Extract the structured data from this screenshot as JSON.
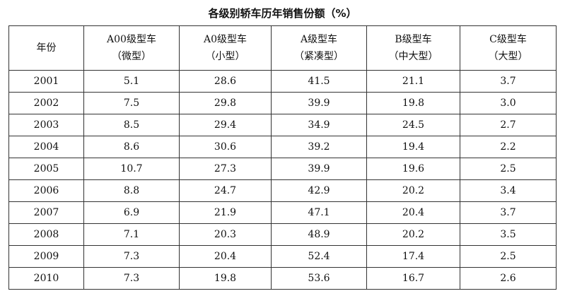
{
  "title": "各级别轿车历年销售份额（%）",
  "table": {
    "header": [
      [
        "年份"
      ],
      [
        "A00级型车",
        "（微型）"
      ],
      [
        "A0级型车",
        "（小型）"
      ],
      [
        "A级型车",
        "（紧凑型）"
      ],
      [
        "B级型车",
        "（中大型）"
      ],
      [
        "C级型车",
        "（大型）"
      ]
    ],
    "rows": [
      [
        "2001",
        "5.1",
        "28.6",
        "41.5",
        "21.1",
        "3.7"
      ],
      [
        "2002",
        "7.5",
        "29.8",
        "39.9",
        "19.8",
        "3.0"
      ],
      [
        "2003",
        "8.5",
        "29.4",
        "34.9",
        "24.5",
        "2.7"
      ],
      [
        "2004",
        "8.6",
        "30.6",
        "39.2",
        "19.4",
        "2.2"
      ],
      [
        "2005",
        "10.7",
        "27.3",
        "39.9",
        "19.6",
        "2.5"
      ],
      [
        "2006",
        "8.8",
        "24.7",
        "42.9",
        "20.2",
        "3.4"
      ],
      [
        "2007",
        "6.9",
        "21.9",
        "47.1",
        "20.4",
        "3.7"
      ],
      [
        "2008",
        "7.1",
        "20.3",
        "48.9",
        "20.2",
        "3.5"
      ],
      [
        "2009",
        "7.3",
        "20.4",
        "52.4",
        "17.4",
        "2.5"
      ],
      [
        "2010",
        "7.3",
        "19.8",
        "53.6",
        "16.7",
        "2.6"
      ]
    ]
  }
}
